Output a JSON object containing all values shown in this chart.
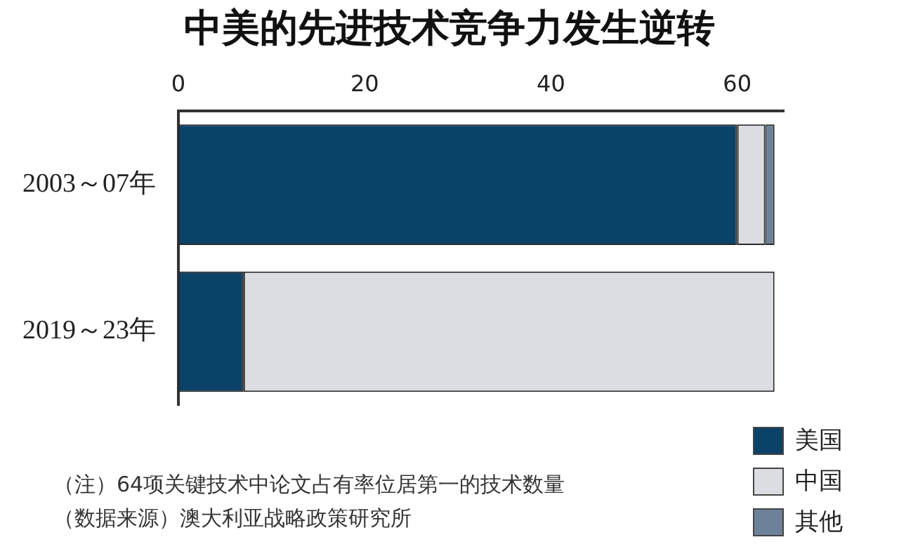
{
  "chart_data": {
    "type": "bar",
    "orientation": "horizontal",
    "stacked": true,
    "title": "中美的先进技术竞争力发生逆转",
    "categories": [
      "2003～07年",
      "2019～23年"
    ],
    "series": [
      {
        "name": "美国",
        "color": "#0b4268",
        "values": [
          60,
          7
        ]
      },
      {
        "name": "中国",
        "color": "#dcdde2",
        "values": [
          3,
          57
        ]
      },
      {
        "name": "其他",
        "color": "#6d8199",
        "values": [
          1,
          0
        ]
      }
    ],
    "xlim": [
      0,
      65
    ],
    "xticks": [
      0,
      20,
      40,
      60
    ],
    "legend": "bottom right",
    "annotations": [
      "（注）64项关键技术中论文占有率位居第一的技术数量",
      "（数据来源）澳大利亚战略政策研究所"
    ]
  }
}
